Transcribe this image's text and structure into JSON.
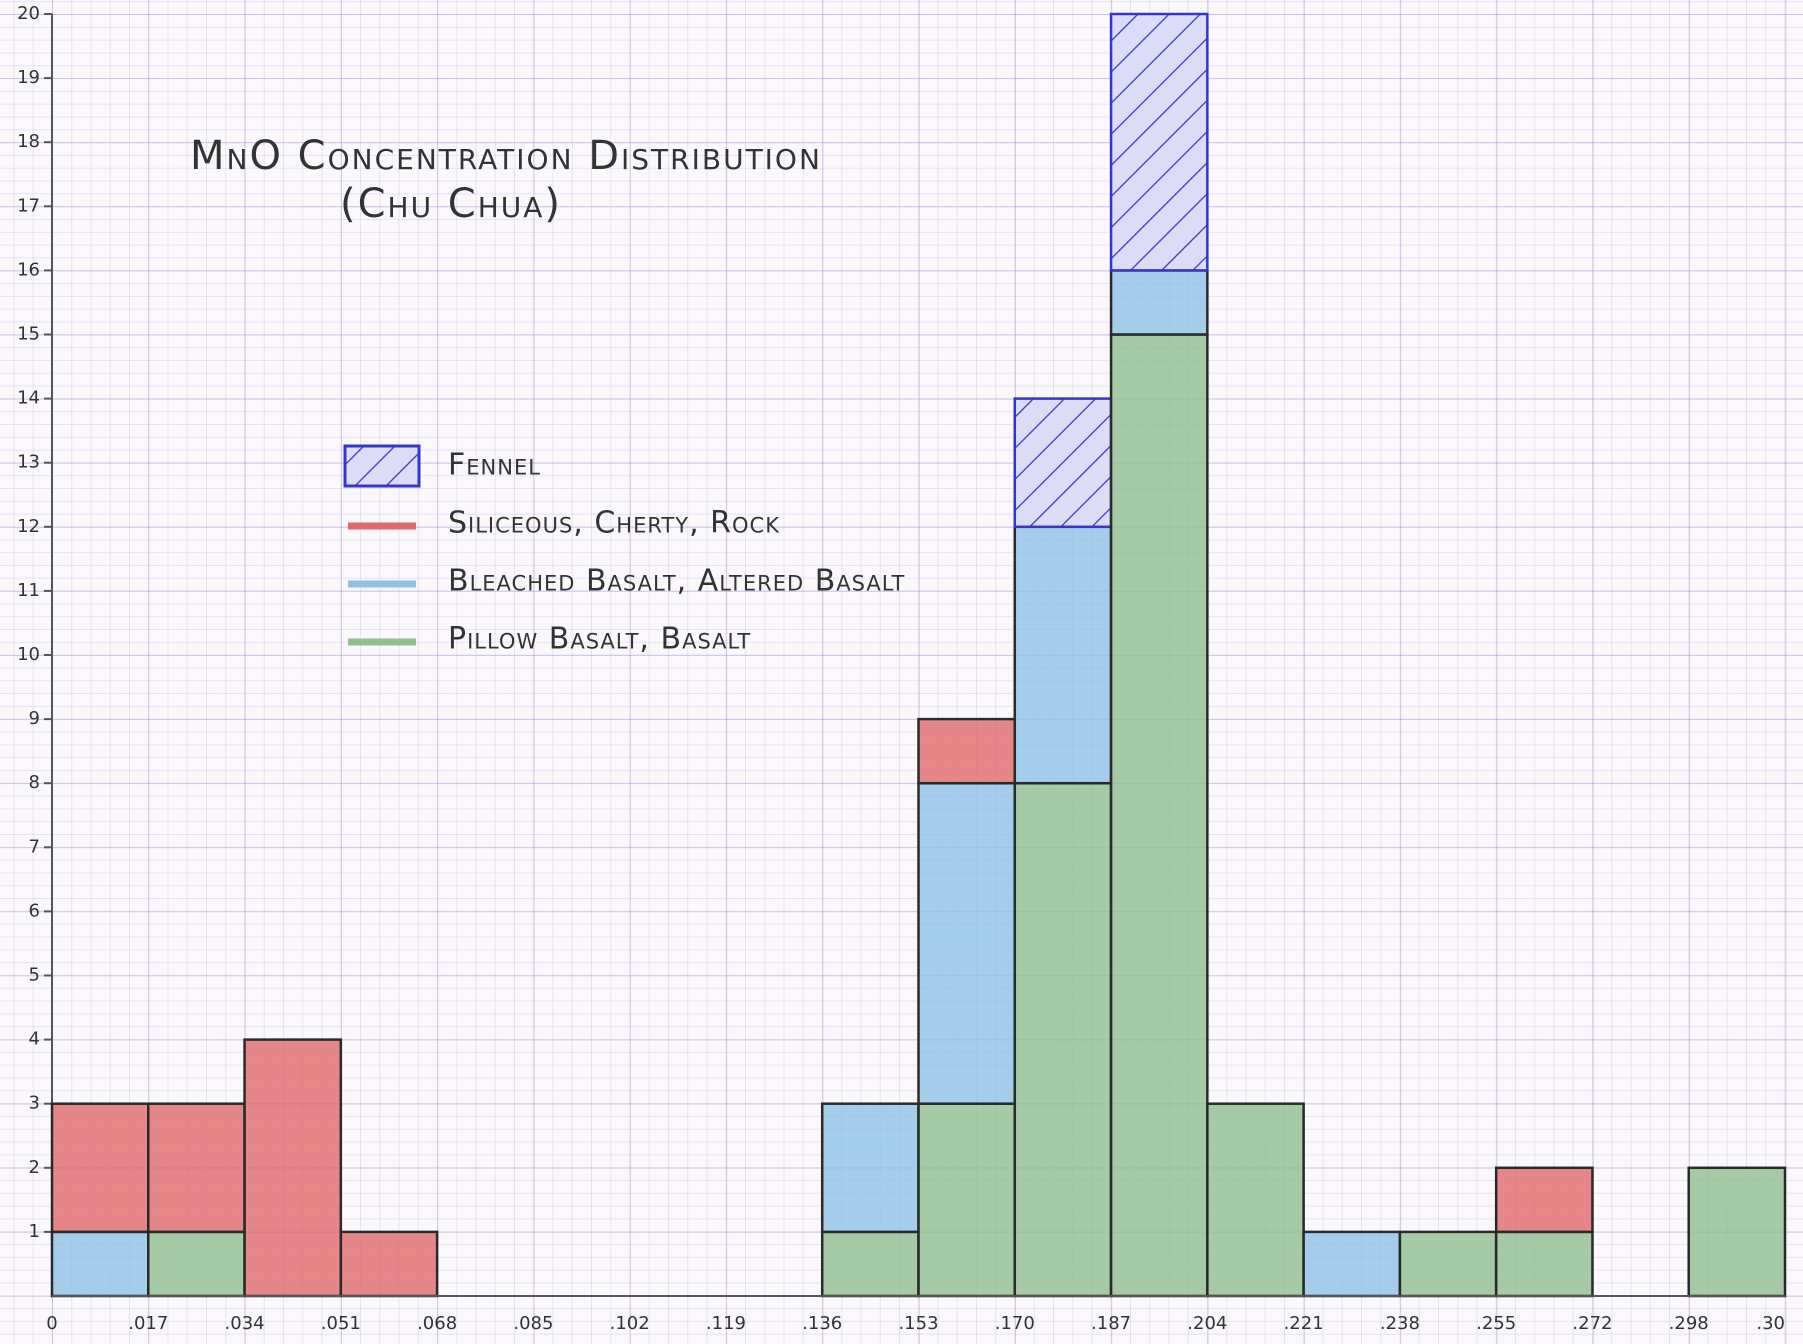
{
  "chart_data": {
    "type": "stacked_histogram",
    "title": "MnO Concentration Distribution",
    "subtitle": "(Chu Chua)",
    "bin_edges": [
      "0",
      ".017",
      ".034",
      ".051",
      ".068",
      ".085",
      ".102",
      ".119",
      ".136",
      ".153",
      ".170",
      ".187",
      ".204",
      ".221",
      ".238",
      ".255",
      ".272",
      ".298",
      ".30"
    ],
    "series": [
      {
        "name": "Fennel",
        "color": "#3535c8",
        "hatch": true,
        "values": [
          0,
          0,
          0,
          0,
          0,
          0,
          0,
          0,
          0,
          0,
          2,
          4,
          0,
          0,
          0,
          0,
          0,
          0
        ]
      },
      {
        "name": "Siliceous, Cherty, Rock",
        "color": "#e06a6a",
        "values": [
          2,
          2,
          4,
          1,
          0,
          0,
          0,
          0,
          0,
          1,
          0,
          0,
          0,
          0,
          0,
          1,
          0,
          0
        ]
      },
      {
        "name": "Bleached Basalt, Altered Basalt",
        "color": "#8fc0e6",
        "values": [
          1,
          0,
          0,
          0,
          0,
          0,
          0,
          0,
          2,
          5,
          4,
          1,
          0,
          1,
          0,
          0,
          0,
          0
        ]
      },
      {
        "name": "Pillow Basalt, Basalt",
        "color": "#8fbf8f",
        "values": [
          0,
          1,
          0,
          0,
          0,
          0,
          0,
          0,
          1,
          3,
          8,
          15,
          3,
          0,
          1,
          1,
          0,
          2
        ]
      }
    ],
    "ylim": [
      0,
      20
    ],
    "yticks": [
      1,
      2,
      3,
      4,
      5,
      6,
      7,
      8,
      9,
      10,
      11,
      12,
      13,
      14,
      15,
      16,
      17,
      18,
      19,
      20
    ]
  }
}
